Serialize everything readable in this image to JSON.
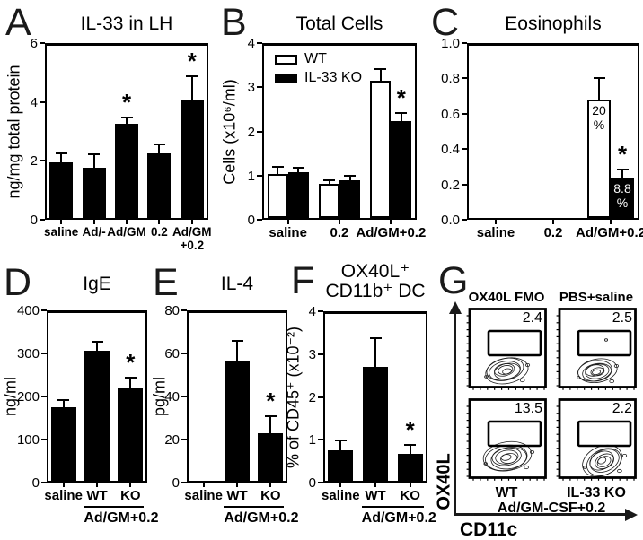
{
  "paper_color": "#ffffff",
  "ink_color": "#000000",
  "panels": {
    "A": {
      "letter": "A"
    },
    "B": {
      "letter": "B"
    },
    "C": {
      "letter": "C"
    },
    "D": {
      "letter": "D"
    },
    "E": {
      "letter": "E"
    },
    "F": {
      "letter": "F"
    },
    "G": {
      "letter": "G"
    }
  },
  "chart_data": [
    {
      "panel": "A",
      "type": "bar",
      "title": [
        "IL-33 in LH"
      ],
      "ylabel": "ng/mg total protein",
      "ylim": [
        0,
        6
      ],
      "yticks": [
        "0",
        "2",
        "4",
        "6"
      ],
      "categories": [
        "saline",
        "Ad/-",
        "Ad/GM",
        "0.2",
        "Ad/GM\n+0.2"
      ],
      "series": [
        {
          "name": "IL-33",
          "fill": "black",
          "values": [
            1.9,
            1.7,
            3.2,
            2.2,
            4.0
          ],
          "errors": [
            0.3,
            0.45,
            0.2,
            0.3,
            0.8
          ],
          "sig": [
            null,
            null,
            "*",
            null,
            "*"
          ]
        }
      ]
    },
    {
      "panel": "B",
      "type": "bar",
      "title": [
        "Total Cells"
      ],
      "ylabel": "Cells (x10⁶/ml)",
      "ylim": [
        0,
        4
      ],
      "yticks": [
        "0",
        "1",
        "2",
        "3",
        "4"
      ],
      "categories": [
        "saline",
        "0.2",
        "Ad/GM+0.2"
      ],
      "legend": {
        "position": "top-left",
        "entries": [
          {
            "label": "WT",
            "fill": "white"
          },
          {
            "label": "IL-33 KO",
            "fill": "black"
          }
        ]
      },
      "series": [
        {
          "name": "WT",
          "fill": "white",
          "values": [
            1.0,
            0.78,
            3.1
          ],
          "errors": [
            0.15,
            0.07,
            0.28
          ],
          "sig": [
            null,
            null,
            null
          ]
        },
        {
          "name": "IL-33 KO",
          "fill": "black",
          "values": [
            1.03,
            0.85,
            2.2
          ],
          "errors": [
            0.1,
            0.1,
            0.17
          ],
          "sig": [
            null,
            null,
            "*"
          ]
        }
      ]
    },
    {
      "panel": "C",
      "type": "bar",
      "title": [
        "Eosinophils"
      ],
      "ylabel": null,
      "ylim": [
        0,
        1.0
      ],
      "yticks": [
        "0.0",
        "0.2",
        "0.4",
        "0.6",
        "0.8",
        "1.0"
      ],
      "categories": [
        "saline",
        "0.2",
        "Ad/GM+0.2"
      ],
      "series": [
        {
          "name": "WT",
          "fill": "white",
          "values": [
            null,
            null,
            0.67
          ],
          "errors": [
            null,
            null,
            0.12
          ],
          "sig": [
            null,
            null,
            null
          ],
          "bar_labels": [
            null,
            null,
            [
              "20",
              "%"
            ]
          ]
        },
        {
          "name": "IL-33 KO",
          "fill": "black",
          "values": [
            null,
            null,
            0.23
          ],
          "errors": [
            null,
            null,
            0.045
          ],
          "sig": [
            null,
            null,
            "*"
          ],
          "bar_labels": [
            null,
            null,
            [
              "8.8",
              "%"
            ]
          ]
        }
      ]
    },
    {
      "panel": "D",
      "type": "bar",
      "title": [
        "IgE"
      ],
      "ylabel": "ng/ml",
      "ylim": [
        0,
        400
      ],
      "yticks": [
        "0",
        "100",
        "200",
        "300",
        "400"
      ],
      "categories": [
        "saline",
        "WT",
        "KO"
      ],
      "group_label": {
        "text": "Ad/GM+0.2",
        "from": 1,
        "to": 2
      },
      "series": [
        {
          "name": "IgE",
          "fill": "black",
          "values": [
            170,
            302,
            216
          ],
          "errors": [
            17,
            20,
            24
          ],
          "sig": [
            null,
            null,
            "*"
          ]
        }
      ]
    },
    {
      "panel": "E",
      "type": "bar",
      "title": [
        "IL-4"
      ],
      "ylabel": "pg/ml",
      "ylim": [
        0,
        80
      ],
      "yticks": [
        "0",
        "20",
        "40",
        "60",
        "80"
      ],
      "categories": [
        "saline",
        "WT",
        "KO"
      ],
      "group_label": {
        "text": "Ad/GM+0.2",
        "from": 1,
        "to": 2
      },
      "series": [
        {
          "name": "IL-4",
          "fill": "black",
          "values": [
            0,
            56,
            22
          ],
          "errors": [
            null,
            9,
            8
          ],
          "sig": [
            null,
            null,
            "*"
          ]
        }
      ]
    },
    {
      "panel": "F",
      "type": "bar",
      "title": [
        "OX40L⁺",
        "CD11b⁺ DC"
      ],
      "ylabel": "% of CD45⁺ (x10⁻²)",
      "ylim": [
        0,
        4
      ],
      "yticks": [
        "0",
        "1",
        "2",
        "3",
        "4"
      ],
      "categories": [
        "saline",
        "WT",
        "KO"
      ],
      "group_label": {
        "text": "Ad/GM+0.2",
        "from": 1,
        "to": 2
      },
      "series": [
        {
          "name": "OX40L+ CD11b+ DC",
          "fill": "black",
          "values": [
            0.72,
            2.67,
            0.63
          ],
          "errors": [
            0.22,
            0.65,
            0.21
          ],
          "sig": [
            null,
            null,
            "*"
          ]
        }
      ]
    },
    {
      "panel": "G",
      "type": "flow_contour",
      "col_titles": [
        "OX40L FMO",
        "PBS+saline"
      ],
      "bottom_labels": [
        "WT",
        "IL-33 KO"
      ],
      "group_label": "Ad/GM-CSF+0.2",
      "xlabel": "CD11c",
      "ylabel": "OX40L",
      "plots": [
        {
          "condition": "OX40L FMO",
          "gate_value": "2.4"
        },
        {
          "condition": "PBS+saline",
          "gate_value": "2.5"
        },
        {
          "condition": "WT",
          "gate_value": "13.5"
        },
        {
          "condition": "IL-33 KO",
          "gate_value": "2.2"
        }
      ]
    }
  ]
}
